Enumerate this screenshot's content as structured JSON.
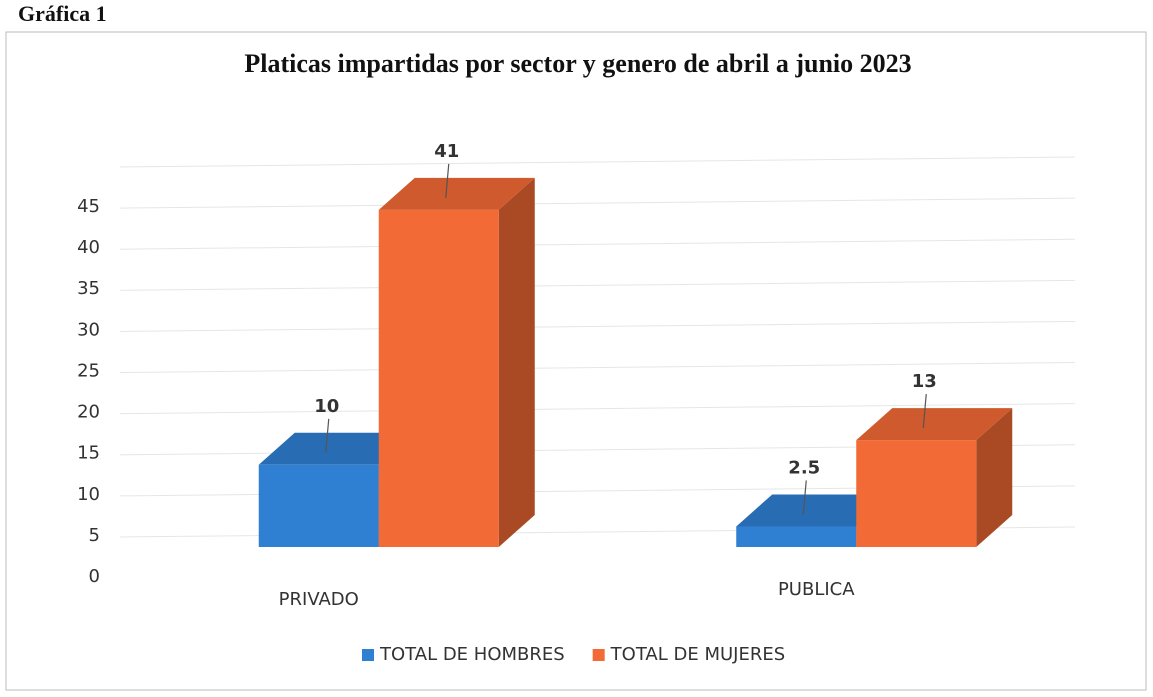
{
  "figure_label": "Gráfica 1",
  "chart_data": {
    "type": "bar3d",
    "title": "Platicas impartidas por sector y genero de abril a junio 2023",
    "categories": [
      "PRIVADO",
      "PUBLICA"
    ],
    "series": [
      {
        "name": "TOTAL DE HOMBRES",
        "color": "#2f7fd3",
        "values": [
          10,
          2.5
        ]
      },
      {
        "name": "TOTAL DE MUJERES",
        "color": "#f26a35",
        "values": [
          41,
          13
        ]
      }
    ],
    "ylim": [
      0,
      45
    ],
    "yticks": [
      0,
      5,
      10,
      15,
      20,
      25,
      30,
      35,
      40,
      45
    ],
    "grid": true,
    "legend": "bottom"
  }
}
